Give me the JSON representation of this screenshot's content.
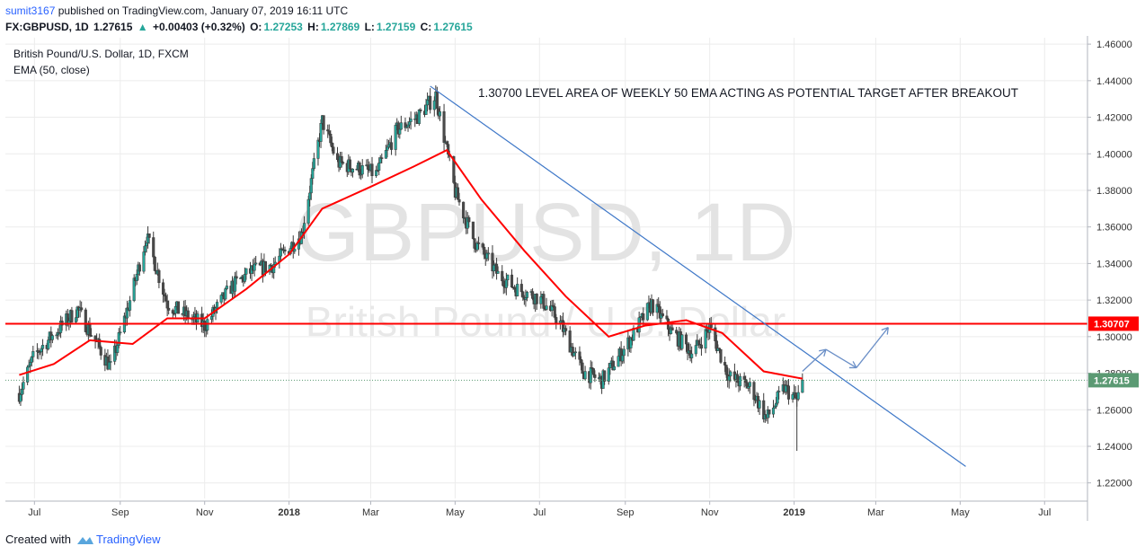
{
  "header": {
    "author": "sumit3167",
    "published_text": "published on TradingView.com, January 07, 2019 16:11 UTC",
    "symbol": "FX:GBPUSD, 1D",
    "last": "1.27615",
    "arrow": "▲",
    "change": "+0.00403 (+0.32%)",
    "o_label": "O:",
    "o_value": "1.27253",
    "h_label": "H:",
    "h_value": "1.27869",
    "l_label": "L:",
    "l_value": "1.27159",
    "c_label": "C:",
    "c_value": "1.27615"
  },
  "legend": {
    "instrument": "British Pound/U.S. Dollar, 1D, FXCM",
    "indicator": "EMA (50, close)"
  },
  "watermark": {
    "symbol": "GBPUSD, 1D",
    "name": "British Pound / U.S. Dollar"
  },
  "annotation": "1.30700 LEVEL AREA OF WEEKLY 50 EMA ACTING AS POTENTIAL TARGET AFTER BREAKOUT",
  "footer": {
    "created_with": "Created with",
    "brand": "TradingView",
    "logo_icon": "tradingview-logo-icon"
  },
  "colors": {
    "up": "#26a69a",
    "candle_body": "#4a4a4a",
    "ema": "#ff0000",
    "resistance": "#ff0000",
    "trendline": "#3f78c8",
    "price_label": "#5b9a73",
    "grid": "#ececec"
  },
  "chart_data": {
    "type": "candlestick",
    "title": "British Pound/U.S. Dollar, 1D, FXCM",
    "y_ticks": [
      "1.46000",
      "1.44000",
      "1.42000",
      "1.40000",
      "1.38000",
      "1.36000",
      "1.34000",
      "1.32000",
      "1.30000",
      "1.28000",
      "1.26000",
      "1.24000",
      "1.22000"
    ],
    "x_ticks": [
      "Jul",
      "Sep",
      "Nov",
      "2018",
      "Mar",
      "May",
      "Jul",
      "Sep",
      "Nov",
      "2019",
      "Mar",
      "May",
      "Jul"
    ],
    "ylim": [
      1.2115,
      1.4635
    ],
    "grid": true,
    "series": [
      {
        "name": "GBPUSD",
        "x": [
          "2017-06-20",
          "2017-07-01",
          "2017-08-01",
          "2017-08-25",
          "2017-09-10",
          "2017-09-20",
          "2017-10-05",
          "2017-10-20",
          "2017-11-01",
          "2017-11-20",
          "2017-12-05",
          "2017-12-20",
          "2018-01-10",
          "2018-01-25",
          "2018-02-05",
          "2018-02-20",
          "2018-03-05",
          "2018-03-20",
          "2018-04-05",
          "2018-04-17",
          "2018-05-01",
          "2018-05-15",
          "2018-06-01",
          "2018-06-15",
          "2018-07-01",
          "2018-07-15",
          "2018-08-01",
          "2018-08-15",
          "2018-09-01",
          "2018-09-20",
          "2018-10-05",
          "2018-10-20",
          "2018-11-01",
          "2018-11-15",
          "2018-12-01",
          "2018-12-12",
          "2018-12-25",
          "2019-01-03",
          "2019-01-07"
        ],
        "close": [
          1.269,
          1.29,
          1.315,
          1.283,
          1.325,
          1.355,
          1.318,
          1.311,
          1.306,
          1.327,
          1.336,
          1.339,
          1.356,
          1.418,
          1.395,
          1.392,
          1.389,
          1.413,
          1.421,
          1.432,
          1.379,
          1.352,
          1.334,
          1.326,
          1.321,
          1.309,
          1.281,
          1.276,
          1.294,
          1.318,
          1.302,
          1.291,
          1.305,
          1.278,
          1.272,
          1.255,
          1.272,
          1.265,
          1.27615
        ]
      },
      {
        "name": "EMA (50, close)",
        "x": [
          "2017-06-20",
          "2017-07-15",
          "2017-08-10",
          "2017-09-10",
          "2017-10-05",
          "2017-11-01",
          "2017-12-01",
          "2018-01-01",
          "2018-01-25",
          "2018-03-01",
          "2018-04-01",
          "2018-04-25",
          "2018-05-20",
          "2018-06-20",
          "2018-07-20",
          "2018-08-20",
          "2018-09-15",
          "2018-10-15",
          "2018-11-10",
          "2018-12-10",
          "2019-01-07"
        ],
        "values": [
          1.279,
          1.285,
          1.298,
          1.296,
          1.31,
          1.31,
          1.326,
          1.345,
          1.37,
          1.382,
          1.393,
          1.402,
          1.375,
          1.347,
          1.322,
          1.3,
          1.306,
          1.309,
          1.302,
          1.281,
          1.277
        ]
      }
    ],
    "horizontal_lines": [
      {
        "label": "1.30707",
        "value": 1.30707
      },
      {
        "label": "1.27615",
        "value": 1.27615
      }
    ],
    "trendline": {
      "from": [
        "2018-04-13",
        1.437
      ],
      "to": [
        "2019-05-05",
        1.229
      ]
    },
    "projection_arrows": [
      [
        "2019-01-07",
        1.281
      ],
      [
        "2019-01-24",
        1.293
      ],
      [
        "2019-02-15",
        1.283
      ],
      [
        "2019-03-10",
        1.305
      ]
    ]
  }
}
